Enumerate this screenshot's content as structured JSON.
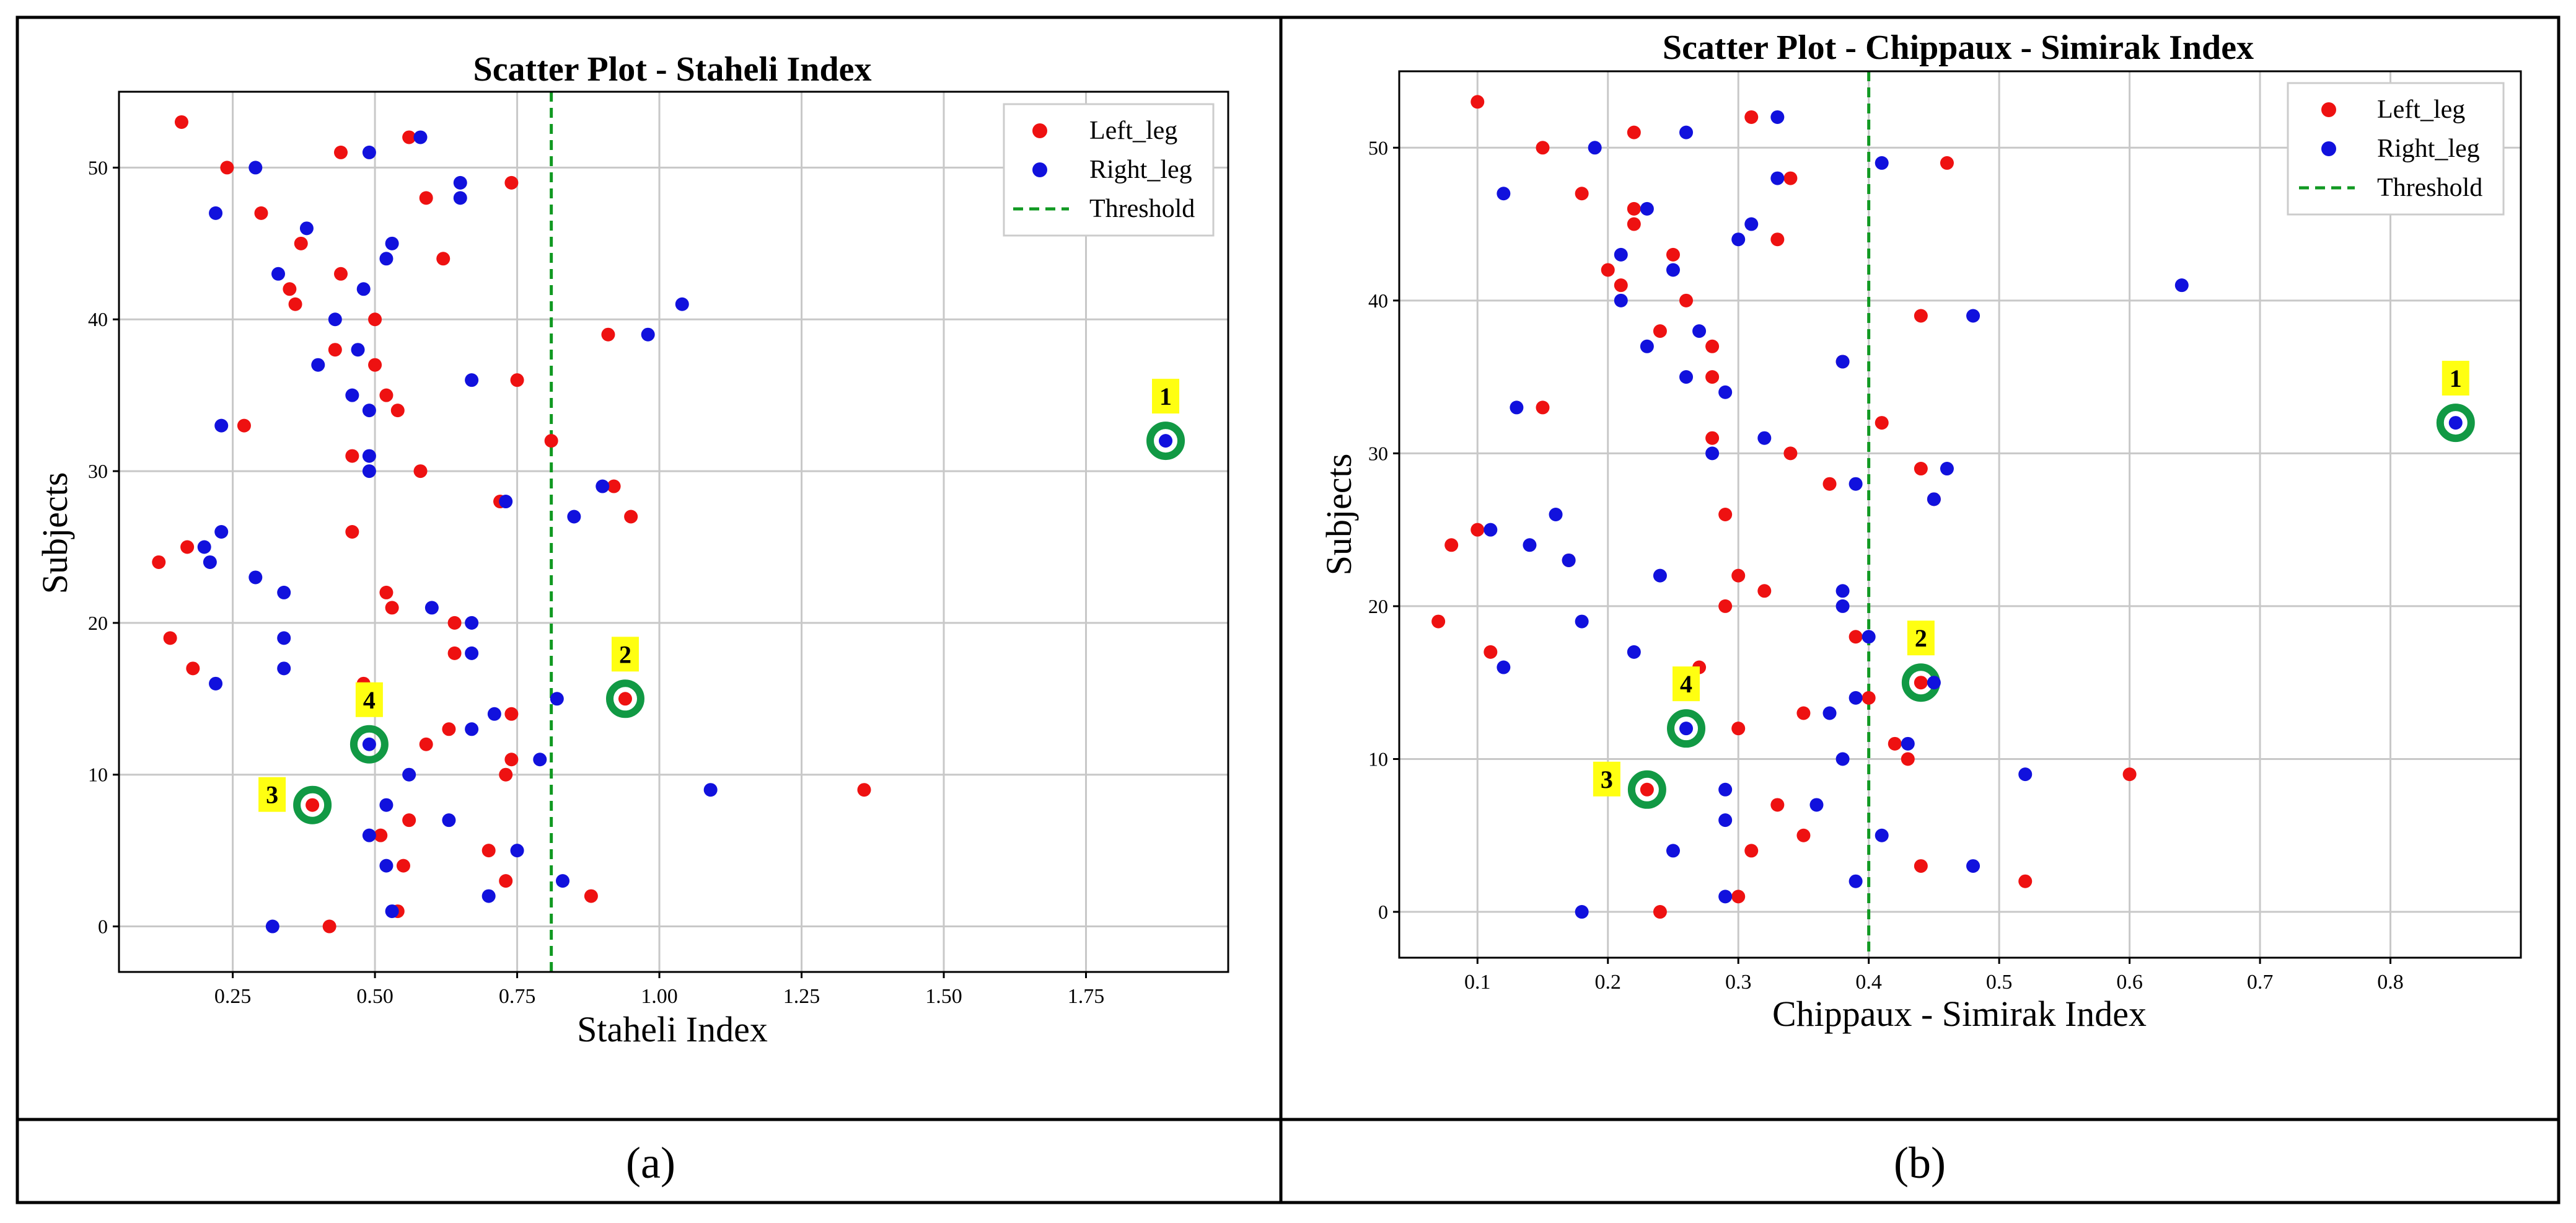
{
  "figure": {
    "caption_a": "(a)",
    "caption_b": "(b)"
  },
  "colors": {
    "left_leg": "#ee1111",
    "right_leg": "#1111dd",
    "threshold": "#119922",
    "highlight_ring": "#119944",
    "annotation_bg": "#ffff11"
  },
  "chart_data": [
    {
      "type": "scatter",
      "title": "Scatter Plot - Staheli Index",
      "xlabel": "Staheli Index",
      "ylabel": "Subjects",
      "xlim": [
        0.05,
        2.0
      ],
      "ylim": [
        -3,
        55
      ],
      "xticks": [
        0.25,
        0.5,
        0.75,
        1.0,
        1.25,
        1.5,
        1.75
      ],
      "xtick_labels": [
        "0.25",
        "0.50",
        "0.75",
        "1.00",
        "1.25",
        "1.50",
        "1.75"
      ],
      "yticks": [
        0,
        10,
        20,
        30,
        40,
        50
      ],
      "ytick_labels": [
        "0",
        "10",
        "20",
        "30",
        "40",
        "50"
      ],
      "grid": true,
      "legend_position": "top-right",
      "threshold": 0.81,
      "series": [
        {
          "name": "Left_leg",
          "points": [
            [
              0.16,
              53
            ],
            [
              0.24,
              50
            ],
            [
              0.44,
              51
            ],
            [
              0.56,
              52
            ],
            [
              0.3,
              47
            ],
            [
              0.59,
              48
            ],
            [
              0.74,
              49
            ],
            [
              0.35,
              42
            ],
            [
              0.37,
              45
            ],
            [
              0.44,
              43
            ],
            [
              0.62,
              44
            ],
            [
              0.36,
              41
            ],
            [
              0.5,
              40
            ],
            [
              0.43,
              38
            ],
            [
              0.5,
              37
            ],
            [
              0.75,
              36
            ],
            [
              0.52,
              35
            ],
            [
              0.54,
              34
            ],
            [
              0.27,
              33
            ],
            [
              0.81,
              32
            ],
            [
              0.46,
              31
            ],
            [
              0.58,
              30
            ],
            [
              0.72,
              28
            ],
            [
              0.92,
              29
            ],
            [
              0.95,
              27
            ],
            [
              0.46,
              26
            ],
            [
              0.17,
              25
            ],
            [
              0.12,
              24
            ],
            [
              0.52,
              22
            ],
            [
              0.53,
              21
            ],
            [
              0.64,
              20
            ],
            [
              0.14,
              19
            ],
            [
              0.64,
              18
            ],
            [
              0.18,
              17
            ],
            [
              0.48,
              16
            ],
            [
              0.94,
              15
            ],
            [
              0.74,
              14
            ],
            [
              0.63,
              13
            ],
            [
              0.59,
              12
            ],
            [
              0.74,
              11
            ],
            [
              0.73,
              10
            ],
            [
              1.36,
              9
            ],
            [
              0.39,
              8
            ],
            [
              0.56,
              7
            ],
            [
              0.51,
              6
            ],
            [
              0.7,
              5
            ],
            [
              0.55,
              4
            ],
            [
              0.73,
              3
            ],
            [
              0.88,
              2
            ],
            [
              0.54,
              1
            ],
            [
              0.42,
              0
            ],
            [
              0.91,
              39
            ]
          ]
        },
        {
          "name": "Right_leg",
          "points": [
            [
              0.58,
              52
            ],
            [
              0.29,
              50
            ],
            [
              0.49,
              51
            ],
            [
              0.65,
              49
            ],
            [
              0.22,
              47
            ],
            [
              0.38,
              46
            ],
            [
              0.65,
              48
            ],
            [
              0.53,
              45
            ],
            [
              0.52,
              44
            ],
            [
              0.33,
              43
            ],
            [
              0.48,
              42
            ],
            [
              0.43,
              40
            ],
            [
              1.04,
              41
            ],
            [
              0.98,
              39
            ],
            [
              0.47,
              38
            ],
            [
              0.4,
              37
            ],
            [
              0.67,
              36
            ],
            [
              0.46,
              35
            ],
            [
              0.49,
              34
            ],
            [
              0.23,
              33
            ],
            [
              0.49,
              31
            ],
            [
              0.49,
              30
            ],
            [
              0.9,
              29
            ],
            [
              0.73,
              28
            ],
            [
              0.85,
              27
            ],
            [
              0.23,
              26
            ],
            [
              0.2,
              25
            ],
            [
              0.21,
              24
            ],
            [
              0.29,
              23
            ],
            [
              0.34,
              22
            ],
            [
              0.6,
              21
            ],
            [
              0.67,
              20
            ],
            [
              0.34,
              19
            ],
            [
              0.67,
              18
            ],
            [
              0.34,
              17
            ],
            [
              0.22,
              16
            ],
            [
              0.82,
              15
            ],
            [
              0.71,
              14
            ],
            [
              0.67,
              13
            ],
            [
              0.49,
              12
            ],
            [
              0.79,
              11
            ],
            [
              0.56,
              10
            ],
            [
              1.09,
              9
            ],
            [
              0.52,
              8
            ],
            [
              0.63,
              7
            ],
            [
              0.49,
              6
            ],
            [
              0.75,
              5
            ],
            [
              0.52,
              4
            ],
            [
              0.83,
              3
            ],
            [
              0.7,
              2
            ],
            [
              0.53,
              1
            ],
            [
              0.32,
              0
            ],
            [
              1.89,
              32
            ]
          ]
        }
      ],
      "annotations": [
        {
          "label": "1",
          "x": 1.89,
          "y": 32
        },
        {
          "label": "2",
          "x": 0.94,
          "y": 15
        },
        {
          "label": "3",
          "x": 0.39,
          "y": 8
        },
        {
          "label": "4",
          "x": 0.49,
          "y": 12
        }
      ],
      "legend": [
        "Left_leg",
        "Right_leg",
        "Threshold"
      ]
    },
    {
      "type": "scatter",
      "title": "Scatter Plot - Chippaux - Simirak Index",
      "xlabel": "Chippaux - Simirak Index",
      "ylabel": "Subjects",
      "xlim": [
        0.04,
        0.9
      ],
      "ylim": [
        -3,
        55
      ],
      "xticks": [
        0.1,
        0.2,
        0.3,
        0.4,
        0.5,
        0.6,
        0.7,
        0.8
      ],
      "xtick_labels": [
        "0.1",
        "0.2",
        "0.3",
        "0.4",
        "0.5",
        "0.6",
        "0.7",
        "0.8"
      ],
      "yticks": [
        0,
        10,
        20,
        30,
        40,
        50
      ],
      "ytick_labels": [
        "0",
        "10",
        "20",
        "30",
        "40",
        "50"
      ],
      "grid": true,
      "legend_position": "top-right",
      "threshold": 0.4,
      "series": [
        {
          "name": "Left_leg",
          "points": [
            [
              0.1,
              53
            ],
            [
              0.22,
              51
            ],
            [
              0.31,
              52
            ],
            [
              0.15,
              50
            ],
            [
              0.46,
              49
            ],
            [
              0.34,
              48
            ],
            [
              0.18,
              47
            ],
            [
              0.22,
              46
            ],
            [
              0.22,
              45
            ],
            [
              0.33,
              44
            ],
            [
              0.25,
              43
            ],
            [
              0.2,
              42
            ],
            [
              0.21,
              41
            ],
            [
              0.26,
              40
            ],
            [
              0.44,
              39
            ],
            [
              0.24,
              38
            ],
            [
              0.28,
              37
            ],
            [
              0.38,
              36
            ],
            [
              0.28,
              35
            ],
            [
              0.15,
              33
            ],
            [
              0.41,
              32
            ],
            [
              0.28,
              31
            ],
            [
              0.34,
              30
            ],
            [
              0.44,
              29
            ],
            [
              0.37,
              28
            ],
            [
              0.45,
              27
            ],
            [
              0.29,
              26
            ],
            [
              0.1,
              25
            ],
            [
              0.08,
              24
            ],
            [
              0.17,
              23
            ],
            [
              0.3,
              22
            ],
            [
              0.32,
              21
            ],
            [
              0.29,
              20
            ],
            [
              0.07,
              19
            ],
            [
              0.39,
              18
            ],
            [
              0.11,
              17
            ],
            [
              0.27,
              16
            ],
            [
              0.44,
              15
            ],
            [
              0.4,
              14
            ],
            [
              0.35,
              13
            ],
            [
              0.3,
              12
            ],
            [
              0.42,
              11
            ],
            [
              0.43,
              10
            ],
            [
              0.6,
              9
            ],
            [
              0.23,
              8
            ],
            [
              0.33,
              7
            ],
            [
              0.31,
              4
            ],
            [
              0.35,
              5
            ],
            [
              0.44,
              3
            ],
            [
              0.52,
              2
            ],
            [
              0.3,
              1
            ],
            [
              0.24,
              0
            ]
          ]
        },
        {
          "name": "Right_leg",
          "points": [
            [
              0.26,
              51
            ],
            [
              0.33,
              52
            ],
            [
              0.19,
              50
            ],
            [
              0.41,
              49
            ],
            [
              0.33,
              48
            ],
            [
              0.12,
              47
            ],
            [
              0.23,
              46
            ],
            [
              0.31,
              45
            ],
            [
              0.3,
              44
            ],
            [
              0.21,
              43
            ],
            [
              0.25,
              42
            ],
            [
              0.64,
              41
            ],
            [
              0.21,
              40
            ],
            [
              0.48,
              39
            ],
            [
              0.27,
              38
            ],
            [
              0.23,
              37
            ],
            [
              0.38,
              36
            ],
            [
              0.26,
              35
            ],
            [
              0.29,
              34
            ],
            [
              0.13,
              33
            ],
            [
              0.32,
              31
            ],
            [
              0.28,
              30
            ],
            [
              0.46,
              29
            ],
            [
              0.39,
              28
            ],
            [
              0.45,
              27
            ],
            [
              0.16,
              26
            ],
            [
              0.11,
              25
            ],
            [
              0.14,
              24
            ],
            [
              0.17,
              23
            ],
            [
              0.24,
              22
            ],
            [
              0.38,
              21
            ],
            [
              0.38,
              20
            ],
            [
              0.18,
              19
            ],
            [
              0.4,
              18
            ],
            [
              0.22,
              17
            ],
            [
              0.12,
              16
            ],
            [
              0.45,
              15
            ],
            [
              0.39,
              14
            ],
            [
              0.37,
              13
            ],
            [
              0.26,
              12
            ],
            [
              0.43,
              11
            ],
            [
              0.38,
              10
            ],
            [
              0.52,
              9
            ],
            [
              0.29,
              8
            ],
            [
              0.36,
              7
            ],
            [
              0.29,
              6
            ],
            [
              0.41,
              5
            ],
            [
              0.25,
              4
            ],
            [
              0.48,
              3
            ],
            [
              0.39,
              2
            ],
            [
              0.29,
              1
            ],
            [
              0.18,
              0
            ],
            [
              0.85,
              32
            ]
          ]
        }
      ],
      "annotations": [
        {
          "label": "1",
          "x": 0.85,
          "y": 32
        },
        {
          "label": "2",
          "x": 0.44,
          "y": 15
        },
        {
          "label": "3",
          "x": 0.23,
          "y": 8
        },
        {
          "label": "4",
          "x": 0.26,
          "y": 12
        }
      ],
      "legend": [
        "Left_leg",
        "Right_leg",
        "Threshold"
      ]
    }
  ]
}
